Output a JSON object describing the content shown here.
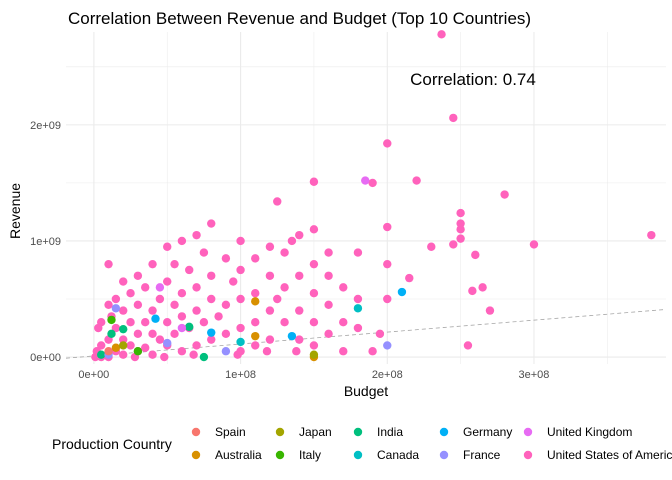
{
  "chart_data": {
    "type": "scatter",
    "title": "Correlation Between Revenue and Budget (Top 10 Countries)",
    "xlabel": "Budget",
    "ylabel": "Revenue",
    "annotation": "Correlation: 0.74",
    "xlim": [
      -19000000.0,
      390000000.0
    ],
    "ylim": [
      -60000000.0,
      2800000000.0
    ],
    "x_ticks": [
      0,
      100000000.0,
      200000000.0,
      300000000.0
    ],
    "x_tick_labels": [
      "0e+00",
      "1e+08",
      "2e+08",
      "3e+08"
    ],
    "y_ticks": [
      0,
      1000000000.0,
      2000000000.0
    ],
    "y_tick_labels": [
      "0e+00",
      "1e+09",
      "2e+09"
    ],
    "grid": true,
    "legend": {
      "title": "Production Country",
      "position": "bottom",
      "entries": [
        {
          "name": "Spain",
          "color": "#F8766D"
        },
        {
          "name": "Australia",
          "color": "#D89000"
        },
        {
          "name": "Japan",
          "color": "#A3A500"
        },
        {
          "name": "Italy",
          "color": "#39B600"
        },
        {
          "name": "India",
          "color": "#00BF7D"
        },
        {
          "name": "Canada",
          "color": "#00BFC4"
        },
        {
          "name": "Germany",
          "color": "#00B0F6"
        },
        {
          "name": "France",
          "color": "#9590FF"
        },
        {
          "name": "United Kingdom",
          "color": "#E76BF3"
        },
        {
          "name": "United States of America",
          "color": "#FF62BC"
        }
      ]
    },
    "trend_line": {
      "x": [
        -19000000.0,
        390000000.0
      ],
      "y": [
        -10000000.0,
        410000000.0
      ]
    },
    "series": [
      {
        "name": "United States of America",
        "color": "#FF62BC",
        "points": [
          [
            237000000.0,
            2780000000.0
          ],
          [
            245000000.0,
            2060000000.0
          ],
          [
            200000000.0,
            1840000000.0
          ],
          [
            220000000.0,
            1520000000.0
          ],
          [
            190000000.0,
            1500000000.0
          ],
          [
            150000000.0,
            1510000000.0
          ],
          [
            280000000.0,
            1400000000.0
          ],
          [
            125000000.0,
            1340000000.0
          ],
          [
            250000000.0,
            1240000000.0
          ],
          [
            250000000.0,
            1150000000.0
          ],
          [
            250000000.0,
            1100000000.0
          ],
          [
            250000000.0,
            1020000000.0
          ],
          [
            245000000.0,
            970000000.0
          ],
          [
            230000000.0,
            950000000.0
          ],
          [
            200000000.0,
            1120000000.0
          ],
          [
            150000000.0,
            1100000000.0
          ],
          [
            140000000.0,
            1050000000.0
          ],
          [
            135000000.0,
            1000000000.0
          ],
          [
            300000000.0,
            970000000.0
          ],
          [
            380000000.0,
            1050000000.0
          ],
          [
            260000000.0,
            880000000.0
          ],
          [
            258000000.0,
            570000000.0
          ],
          [
            265000000.0,
            600000000.0
          ],
          [
            270000000.0,
            400000000.0
          ],
          [
            255000000.0,
            100000000.0
          ],
          [
            200000000.0,
            800000000.0
          ],
          [
            215000000.0,
            680000000.0
          ],
          [
            200000000.0,
            500000000.0
          ],
          [
            195000000.0,
            200000000.0
          ],
          [
            180000000.0,
            900000000.0
          ],
          [
            180000000.0,
            500000000.0
          ],
          [
            180000000.0,
            250000000.0
          ],
          [
            170000000.0,
            600000000.0
          ],
          [
            170000000.0,
            300000000.0
          ],
          [
            160000000.0,
            900000000.0
          ],
          [
            160000000.0,
            700000000.0
          ],
          [
            160000000.0,
            450000000.0
          ],
          [
            160000000.0,
            200000000.0
          ],
          [
            150000000.0,
            800000000.0
          ],
          [
            150000000.0,
            550000000.0
          ],
          [
            150000000.0,
            300000000.0
          ],
          [
            150000000.0,
            100000000.0
          ],
          [
            140000000.0,
            700000000.0
          ],
          [
            140000000.0,
            400000000.0
          ],
          [
            140000000.0,
            150000000.0
          ],
          [
            130000000.0,
            900000000.0
          ],
          [
            130000000.0,
            600000000.0
          ],
          [
            130000000.0,
            300000000.0
          ],
          [
            125000000.0,
            500000000.0
          ],
          [
            120000000.0,
            950000000.0
          ],
          [
            120000000.0,
            700000000.0
          ],
          [
            120000000.0,
            400000000.0
          ],
          [
            120000000.0,
            150000000.0
          ],
          [
            110000000.0,
            850000000.0
          ],
          [
            110000000.0,
            550000000.0
          ],
          [
            110000000.0,
            300000000.0
          ],
          [
            110000000.0,
            100000000.0
          ],
          [
            100000000.0,
            1000000000.0
          ],
          [
            100000000.0,
            750000000.0
          ],
          [
            100000000.0,
            500000000.0
          ],
          [
            100000000.0,
            250000000.0
          ],
          [
            100000000.0,
            50000000.0
          ],
          [
            95000000.0,
            650000000.0
          ],
          [
            90000000.0,
            850000000.0
          ],
          [
            90000000.0,
            450000000.0
          ],
          [
            90000000.0,
            200000000.0
          ],
          [
            85000000.0,
            350000000.0
          ],
          [
            80000000.0,
            1150000000.0
          ],
          [
            80000000.0,
            700000000.0
          ],
          [
            80000000.0,
            500000000.0
          ],
          [
            80000000.0,
            150000000.0
          ],
          [
            75000000.0,
            900000000.0
          ],
          [
            75000000.0,
            300000000.0
          ],
          [
            70000000.0,
            1050000000.0
          ],
          [
            70000000.0,
            600000000.0
          ],
          [
            70000000.0,
            400000000.0
          ],
          [
            70000000.0,
            100000000.0
          ],
          [
            65000000.0,
            750000000.0
          ],
          [
            65000000.0,
            250000000.0
          ],
          [
            60000000.0,
            1000000000.0
          ],
          [
            60000000.0,
            550000000.0
          ],
          [
            60000000.0,
            350000000.0
          ],
          [
            60000000.0,
            50000000.0
          ],
          [
            55000000.0,
            800000000.0
          ],
          [
            55000000.0,
            450000000.0
          ],
          [
            55000000.0,
            200000000.0
          ],
          [
            50000000.0,
            950000000.0
          ],
          [
            50000000.0,
            650000000.0
          ],
          [
            50000000.0,
            300000000.0
          ],
          [
            50000000.0,
            100000000.0
          ],
          [
            45000000.0,
            500000000.0
          ],
          [
            45000000.0,
            150000000.0
          ],
          [
            40000000.0,
            800000000.0
          ],
          [
            40000000.0,
            400000000.0
          ],
          [
            40000000.0,
            200000000.0
          ],
          [
            40000000.0,
            20000000.0
          ],
          [
            35000000.0,
            600000000.0
          ],
          [
            35000000.0,
            300000000.0
          ],
          [
            35000000.0,
            80000000.0
          ],
          [
            30000000.0,
            700000000.0
          ],
          [
            30000000.0,
            450000000.0
          ],
          [
            30000000.0,
            200000000.0
          ],
          [
            30000000.0,
            50000000.0
          ],
          [
            25000000.0,
            550000000.0
          ],
          [
            25000000.0,
            300000000.0
          ],
          [
            25000000.0,
            100000000.0
          ],
          [
            20000000.0,
            650000000.0
          ],
          [
            20000000.0,
            400000000.0
          ],
          [
            20000000.0,
            150000000.0
          ],
          [
            20000000.0,
            20000000.0
          ],
          [
            15000000.0,
            500000000.0
          ],
          [
            15000000.0,
            250000000.0
          ],
          [
            15000000.0,
            50000000.0
          ],
          [
            12000000.0,
            350000000.0
          ],
          [
            10000000.0,
            800000000.0
          ],
          [
            10000000.0,
            450000000.0
          ],
          [
            10000000.0,
            150000000.0
          ],
          [
            10000000.0,
            0.0
          ],
          [
            5000000.0,
            300000000.0
          ],
          [
            5000000.0,
            100000000.0
          ],
          [
            5000000.0,
            0.0
          ],
          [
            3000000.0,
            250000000.0
          ],
          [
            2000000.0,
            50000000.0
          ],
          [
            1000000.0,
            0.0
          ],
          [
            28000000.0,
            0.0
          ],
          [
            48000000.0,
            0.0
          ],
          [
            68000000.0,
            20000000.0
          ],
          [
            98000000.0,
            20000000.0
          ],
          [
            118000000.0,
            50000000.0
          ],
          [
            138000000.0,
            50000000.0
          ],
          [
            170000000.0,
            50000000.0
          ],
          [
            190000000.0,
            50000000.0
          ]
        ]
      },
      {
        "name": "Australia",
        "color": "#D89000",
        "points": [
          [
            110000000.0,
            480000000.0
          ],
          [
            110000000.0,
            180000000.0
          ],
          [
            150000000.0,
            0.0
          ],
          [
            15000000.0,
            80000000.0
          ]
        ]
      },
      {
        "name": "Italy",
        "color": "#39B600",
        "points": [
          [
            12000000.0,
            320000000.0
          ],
          [
            30000000.0,
            50000000.0
          ]
        ]
      },
      {
        "name": "India",
        "color": "#00BF7D",
        "points": [
          [
            65000000.0,
            260000000.0
          ],
          [
            75000000.0,
            0.0
          ],
          [
            20000000.0,
            240000000.0
          ],
          [
            12000000.0,
            200000000.0
          ],
          [
            5000000.0,
            20000000.0
          ]
        ]
      },
      {
        "name": "Germany",
        "color": "#00B0F6",
        "points": [
          [
            210000000.0,
            560000000.0
          ],
          [
            42000000.0,
            330000000.0
          ],
          [
            80000000.0,
            210000000.0
          ],
          [
            135000000.0,
            180000000.0
          ]
        ]
      },
      {
        "name": "Canada",
        "color": "#00BFC4",
        "points": [
          [
            180000000.0,
            420000000.0
          ],
          [
            100000000.0,
            130000000.0
          ]
        ]
      },
      {
        "name": "France",
        "color": "#9590FF",
        "points": [
          [
            200000000.0,
            100000000.0
          ],
          [
            15000000.0,
            420000000.0
          ],
          [
            50000000.0,
            120000000.0
          ],
          [
            90000000.0,
            50000000.0
          ],
          [
            10000000.0,
            20000000.0
          ]
        ]
      },
      {
        "name": "Japan",
        "color": "#A3A500",
        "points": [
          [
            150000000.0,
            20000000.0
          ],
          [
            20000000.0,
            100000000.0
          ]
        ]
      },
      {
        "name": "Spain",
        "color": "#F8766D",
        "points": [
          [
            10000000.0,
            50000000.0
          ]
        ]
      },
      {
        "name": "United Kingdom",
        "color": "#E76BF3",
        "points": [
          [
            185000000.0,
            1520000000.0
          ],
          [
            45000000.0,
            600000000.0
          ],
          [
            60000000.0,
            250000000.0
          ]
        ]
      }
    ]
  }
}
